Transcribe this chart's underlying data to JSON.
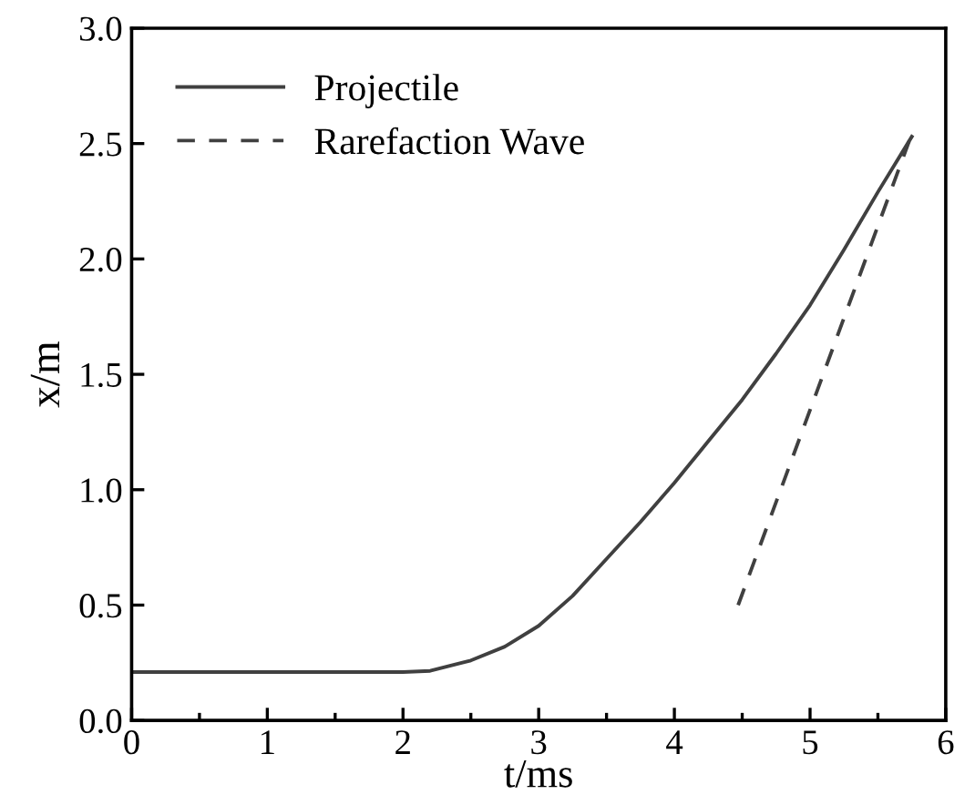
{
  "chart_data": {
    "type": "line",
    "xlabel": "t/ms",
    "ylabel": "x/m",
    "xlim": [
      0,
      6
    ],
    "xticks": [
      0,
      1,
      2,
      3,
      4,
      5,
      6
    ],
    "ylim": [
      0,
      3.0
    ],
    "yticks": [
      {
        "value": 0,
        "label": "0.0"
      },
      {
        "value": 0.5,
        "label": "0.5"
      },
      {
        "value": 1.0,
        "label": "1.0"
      },
      {
        "value": 1.5,
        "label": "1.5"
      },
      {
        "value": 2.0,
        "label": "2.0"
      },
      {
        "value": 2.5,
        "label": "2.5"
      },
      {
        "value": 3.0,
        "label": "3.0"
      }
    ],
    "grid": false,
    "legend": "top left",
    "series": [
      {
        "name": "Projectile",
        "color": "#404040",
        "line_style": "solid",
        "x": [
          0,
          1,
          2,
          2.2,
          2.5,
          2.75,
          3,
          3.25,
          3.5,
          3.75,
          4,
          4.25,
          4.5,
          4.75,
          5,
          5.25,
          5.5,
          5.75
        ],
        "values": [
          0.21,
          0.21,
          0.21,
          0.215,
          0.26,
          0.32,
          0.41,
          0.54,
          0.7,
          0.86,
          1.03,
          1.21,
          1.39,
          1.59,
          1.8,
          2.04,
          2.29,
          2.53
        ]
      },
      {
        "name": "Rarefaction Wave",
        "color": "#404040",
        "line_style": "dashed",
        "x": [
          4.47,
          5.73
        ],
        "values": [
          0.5,
          2.51
        ]
      }
    ]
  }
}
